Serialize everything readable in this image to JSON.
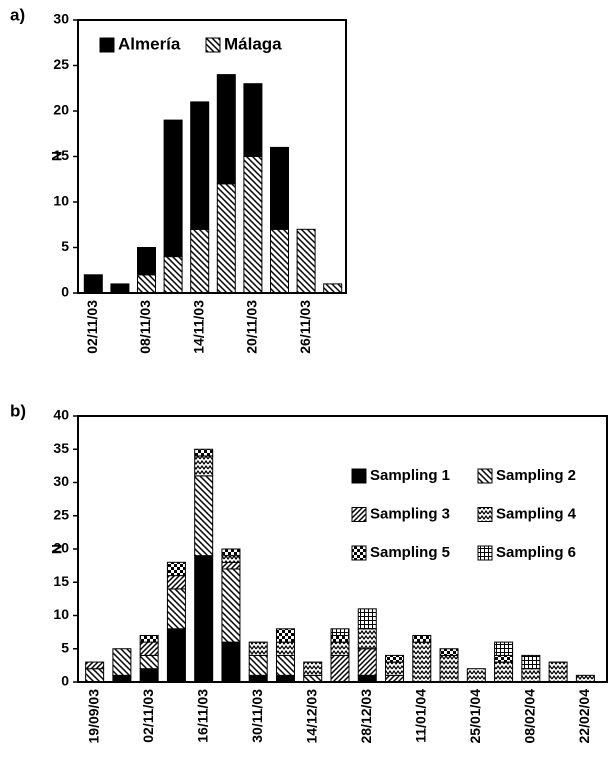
{
  "chart_data": [
    {
      "type": "stacked-bar",
      "label": "a)",
      "ylabel": "N",
      "categories": [
        "02/11/03",
        null,
        "08/11/03",
        null,
        "14/11/03",
        null,
        "20/11/03",
        null,
        "26/11/03",
        null
      ],
      "series": [
        {
          "name": "Málaga",
          "color": "#000000",
          "pattern": "hatch-down",
          "values": [
            0,
            0,
            2,
            4,
            7,
            12,
            15,
            7,
            7,
            1
          ]
        },
        {
          "name": "Almería",
          "color": "#000000",
          "pattern": "solid",
          "values": [
            2,
            1,
            3,
            15,
            14,
            12,
            8,
            9,
            0,
            0
          ]
        }
      ],
      "legend": "top",
      "legend_order": [
        1,
        0
      ],
      "ylim": [
        0,
        30
      ],
      "yticks": [
        0,
        5,
        10,
        15,
        20,
        25,
        30
      ]
    },
    {
      "type": "stacked-bar",
      "label": "b)",
      "ylabel": "N",
      "categories": [
        "19/09/03",
        null,
        "02/11/03",
        null,
        "16/11/03",
        null,
        "30/11/03",
        null,
        "14/12/03",
        null,
        "28/12/03",
        null,
        "11/01/04",
        null,
        "25/01/04",
        null,
        "08/02/04",
        null,
        "22/02/04"
      ],
      "series": [
        {
          "name": "Sampling 1",
          "color": "#000000",
          "pattern": "solid",
          "values": [
            0,
            1,
            2,
            8,
            19,
            6,
            1,
            1,
            0,
            0,
            1,
            0,
            0,
            0,
            0,
            0,
            0,
            0,
            0
          ]
        },
        {
          "name": "Sampling 2",
          "color": "#000000",
          "pattern": "hatch-down",
          "values": [
            2,
            4,
            2,
            6,
            12,
            11,
            3,
            3,
            1,
            0,
            0,
            0,
            0,
            0,
            0,
            0,
            0,
            0,
            0
          ]
        },
        {
          "name": "Sampling 3",
          "color": "#000000",
          "pattern": "hatch-up",
          "values": [
            1,
            0,
            2,
            2,
            0,
            1,
            0,
            0,
            0,
            4,
            4,
            1,
            0,
            0,
            0,
            0,
            0,
            0,
            0
          ]
        },
        {
          "name": "Sampling 4",
          "color": "#000000",
          "pattern": "zigzag",
          "values": [
            0,
            0,
            0,
            0,
            3,
            1,
            2,
            2,
            2,
            2,
            3,
            2,
            6,
            4,
            2,
            3,
            2,
            3,
            1
          ]
        },
        {
          "name": "Sampling 5",
          "color": "#000000",
          "pattern": "checker",
          "values": [
            0,
            0,
            1,
            2,
            1,
            1,
            0,
            2,
            0,
            1,
            0,
            1,
            1,
            1,
            0,
            1,
            0,
            0,
            0
          ]
        },
        {
          "name": "Sampling 6",
          "color": "#000000",
          "pattern": "grid",
          "values": [
            0,
            0,
            0,
            0,
            0,
            0,
            0,
            0,
            0,
            1,
            3,
            0,
            0,
            0,
            0,
            2,
            2,
            0,
            0
          ]
        }
      ],
      "legend": "right",
      "legend_order": [
        0,
        1,
        2,
        3,
        4,
        5
      ],
      "ylim": [
        0,
        40
      ],
      "yticks": [
        0,
        5,
        10,
        15,
        20,
        25,
        30,
        35,
        40
      ]
    }
  ]
}
